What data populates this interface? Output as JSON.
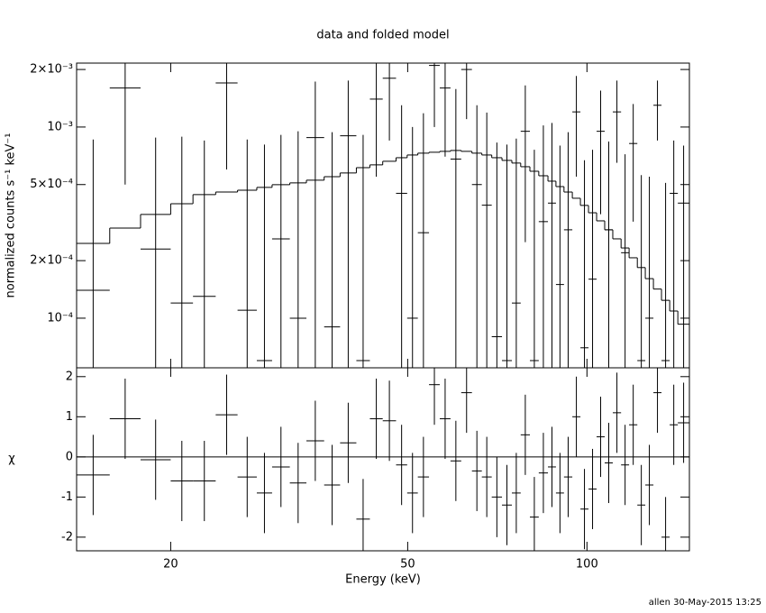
{
  "chart_data": [
    {
      "type": "errorbar",
      "title": "data and folded model",
      "y_label": "normalized counts s⁻¹ keV⁻¹",
      "log_x": true,
      "log_y": true,
      "xlim": [
        13.9,
        148.6
      ],
      "ylim": [
        5.5e-05,
        0.00216
      ],
      "yticks": [
        {
          "value": 0.002,
          "label": "2×10⁻³"
        },
        {
          "value": 0.001,
          "label": "10⁻³"
        },
        {
          "value": 0.0005,
          "label": "5×10⁻⁴"
        },
        {
          "value": 0.0002,
          "label": "2×10⁻⁴"
        },
        {
          "value": 0.0001,
          "label": "10⁻⁴"
        }
      ],
      "bins": [
        13.9,
        15.8,
        17.8,
        20.0,
        21.8,
        23.8,
        25.9,
        27.9,
        29.6,
        31.7,
        33.8,
        36.2,
        38.5,
        41.0,
        43.2,
        45.4,
        47.8,
        49.9,
        52.0,
        54.3,
        56.6,
        59.0,
        61.5,
        64.1,
        66.6,
        69.2,
        72.0,
        74.8,
        77.4,
        80.2,
        83.0,
        86.0,
        88.7,
        91.5,
        94.5,
        97.5,
        100.6,
        103.8,
        107.1,
        110.5,
        114.1,
        117.7,
        121.5,
        125.3,
        129.3,
        133.4,
        137.7,
        142.1,
        148.6
      ],
      "data": {
        "color": "#000000",
        "values": [
          0.00014,
          0.0016,
          0.00023,
          0.00012,
          0.00013,
          0.0017,
          0.00011,
          6e-05,
          0.00026,
          0.0001,
          0.00088,
          9e-05,
          0.0009,
          6e-05,
          0.0014,
          0.0018,
          0.00045,
          0.0001,
          0.00028,
          0.0021,
          0.0016,
          0.00068,
          0.002,
          0.0005,
          0.00039,
          8e-05,
          6e-05,
          0.00012,
          0.00095,
          6e-05,
          0.00032,
          0.0004,
          0.00015,
          0.00029,
          0.0012,
          7e-05,
          0.00016,
          0.00095,
          0.00029,
          0.0012,
          0.00022,
          0.00082,
          6e-05,
          0.0001,
          0.0013,
          6e-05,
          0.00045,
          0.0004
        ],
        "errors": [
          0.00072,
          0.0011,
          0.00065,
          0.00077,
          0.00072,
          0.0011,
          0.00075,
          0.00075,
          0.00065,
          0.00085,
          0.00085,
          0.00085,
          0.00085,
          0.00085,
          0.00085,
          0.00095,
          0.00085,
          0.0009,
          0.0009,
          0.0011,
          0.0009,
          0.0009,
          0.0009,
          0.0008,
          0.0008,
          0.00075,
          0.00075,
          0.00075,
          0.0007,
          0.0007,
          0.0007,
          0.00065,
          0.00065,
          0.00065,
          0.00065,
          0.0006,
          0.0006,
          0.0006,
          0.00055,
          0.00055,
          0.0005,
          0.0005,
          0.0005,
          0.00045,
          0.00045,
          0.00045,
          0.0004,
          0.0004
        ]
      },
      "model": {
        "color": "#000000",
        "values": [
          0.000246,
          0.000296,
          0.000349,
          0.000397,
          0.000443,
          0.000457,
          0.000467,
          0.000483,
          0.000499,
          0.00051,
          0.000527,
          0.00055,
          0.000575,
          0.000613,
          0.000634,
          0.000662,
          0.000691,
          0.000714,
          0.00073,
          0.000738,
          0.000746,
          0.000754,
          0.000746,
          0.00073,
          0.000714,
          0.000691,
          0.000669,
          0.000648,
          0.00062,
          0.000587,
          0.000556,
          0.000521,
          0.000488,
          0.000457,
          0.000424,
          0.000389,
          0.000356,
          0.000323,
          0.00029,
          0.00026,
          0.000233,
          0.000207,
          0.000184,
          0.000161,
          0.000142,
          0.000124,
          0.000109,
          9.3e-05
        ]
      }
    },
    {
      "type": "residual",
      "y_label": "χ",
      "x_label": "Energy (keV)",
      "log_x": true,
      "xlim": [
        13.9,
        148.6
      ],
      "xticks": [
        20,
        50,
        100
      ],
      "ylim": [
        -2.34,
        2.22
      ],
      "yticks": [
        -2,
        -1,
        0,
        1,
        2
      ],
      "color": "#000000",
      "values": [
        -0.45,
        0.95,
        -0.07,
        -0.6,
        -0.6,
        1.05,
        -0.5,
        -0.9,
        -0.25,
        -0.65,
        0.4,
        -0.7,
        0.35,
        -1.55,
        0.95,
        0.9,
        -0.2,
        -0.9,
        -0.5,
        1.8,
        0.95,
        -0.1,
        1.6,
        -0.35,
        -0.5,
        -1.0,
        -1.2,
        -0.9,
        0.55,
        -1.5,
        -0.4,
        -0.25,
        -0.9,
        -0.5,
        1.0,
        -1.3,
        -0.8,
        0.5,
        -0.15,
        1.1,
        -0.2,
        0.8,
        -1.2,
        -0.7,
        1.6,
        -2.0,
        0.8,
        0.85
      ],
      "errors": [
        1,
        1,
        1,
        1,
        1,
        1,
        1,
        1,
        1,
        1,
        1,
        1,
        1,
        1,
        1,
        1,
        1,
        1,
        1,
        1,
        1,
        1,
        1,
        1,
        1,
        1,
        1,
        1,
        1,
        1,
        1,
        1,
        1,
        1,
        1,
        1,
        1,
        1,
        1,
        1,
        1,
        1,
        1,
        1,
        1,
        1,
        1,
        1
      ],
      "zero_line": {
        "value": 0,
        "color": "#33cc33"
      }
    }
  ],
  "footer": "allen 30-May-2015 13:25"
}
